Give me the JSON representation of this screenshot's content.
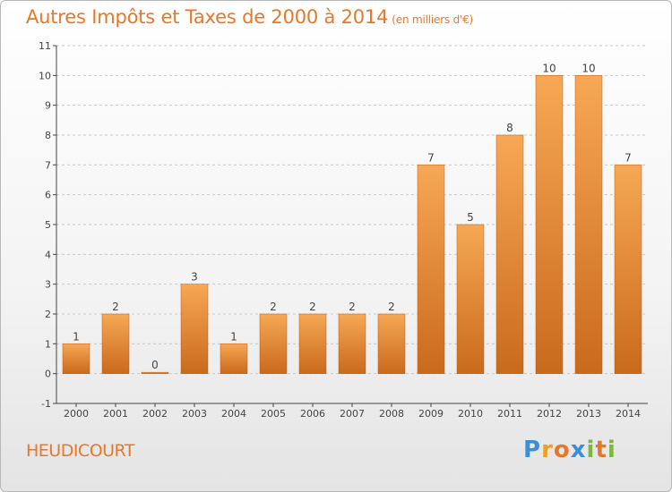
{
  "title": "Autres Impôts et Taxes de 2000 à 2014",
  "subtitle": "(en milliers d'€)",
  "commune": "HEUDICOURT",
  "logo": {
    "text": "Proxiti",
    "letters": [
      "P",
      "r",
      "o",
      "x",
      "i",
      "t",
      "i"
    ],
    "colors": [
      "#3a8fd6",
      "#f0a020",
      "#e8772a",
      "#3a8fd6",
      "#7cb83a",
      "#e8772a",
      "#7cb83a"
    ]
  },
  "colors": {
    "accent": "#e8772a",
    "bar_light": "#f7a855",
    "bar_dark": "#c96a1c",
    "axis": "#444444",
    "grid": "#c8c8c8"
  },
  "chart_data": {
    "type": "bar",
    "categories": [
      "2000",
      "2001",
      "2002",
      "2003",
      "2004",
      "2005",
      "2006",
      "2007",
      "2008",
      "2009",
      "2010",
      "2011",
      "2012",
      "2013",
      "2014"
    ],
    "values": [
      1,
      2,
      0,
      3,
      1,
      2,
      2,
      2,
      2,
      7,
      5,
      8,
      10,
      10,
      7
    ],
    "data_labels": [
      "1",
      "2",
      "0",
      "3",
      "1",
      "2",
      "2",
      "2",
      "2",
      "7",
      "5",
      "8",
      "10",
      "10",
      "7"
    ],
    "yticks": [
      "-1",
      "0",
      "1",
      "2",
      "3",
      "4",
      "5",
      "6",
      "7",
      "8",
      "9",
      "10",
      "11"
    ],
    "ylim": [
      -1,
      11
    ],
    "grid": true
  }
}
